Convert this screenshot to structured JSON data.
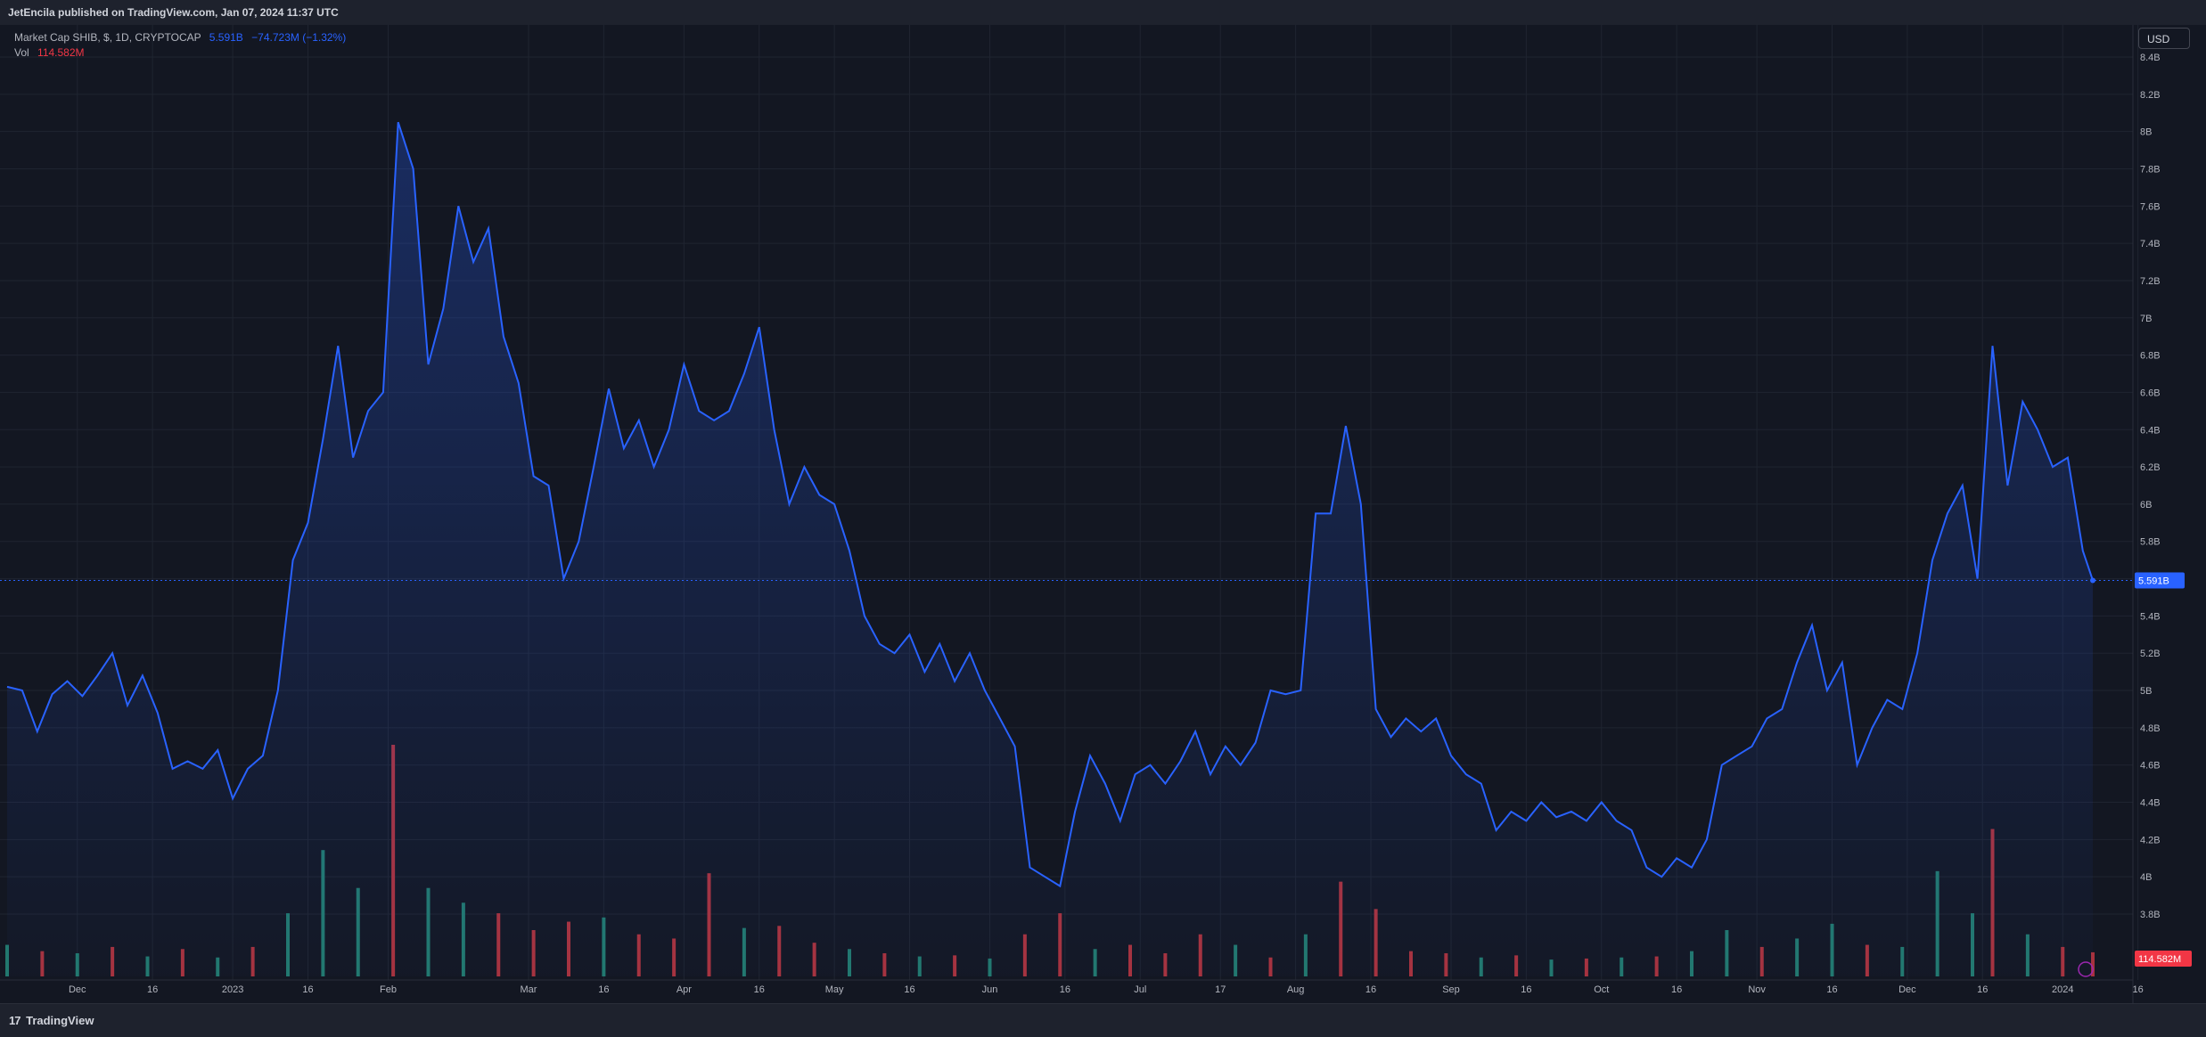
{
  "header": {
    "published": "JetEncila published on TradingView.com, Jan 07, 2024 11:37 UTC"
  },
  "legend": {
    "title": "Market Cap SHIB, $, 1D, CRYPTOCAP",
    "value": "5.591B",
    "change": "−74.723M (−1.32%)",
    "vol_label": "Vol",
    "vol_value": "114.582M"
  },
  "currency": "USD",
  "footer": {
    "brand": "TradingView",
    "logo_glyph": "17"
  },
  "colors": {
    "line": "#2962ff",
    "vol_up": "#22786d",
    "vol_down": "#a8323c",
    "last_price_badge": "#2962ff",
    "last_vol_badge": "#f23645"
  },
  "chart_data": {
    "type": "area",
    "title": "Market Cap SHIB, $, 1D, CRYPTOCAP",
    "y_unit": "B",
    "y_range": [
      3.6,
      8.4
    ],
    "y_ticks": [
      "8.4B",
      "8.2B",
      "8B",
      "7.8B",
      "7.6B",
      "7.4B",
      "7.2B",
      "7B",
      "6.8B",
      "6.6B",
      "6.4B",
      "6.2B",
      "6B",
      "5.8B",
      "5.6B",
      "5.4B",
      "5.2B",
      "5B",
      "4.8B",
      "4.6B",
      "4.4B",
      "4.2B",
      "4B",
      "3.8B"
    ],
    "x_range": [
      "2022-11-17",
      "2024-01-15"
    ],
    "x_ticks": [
      {
        "label": "Dec",
        "date": "2022-12-01"
      },
      {
        "label": "16",
        "date": "2022-12-16"
      },
      {
        "label": "2023",
        "date": "2023-01-01"
      },
      {
        "label": "16",
        "date": "2023-01-16"
      },
      {
        "label": "Feb",
        "date": "2023-02-01"
      },
      {
        "label": "Mar",
        "date": "2023-03-01"
      },
      {
        "label": "16",
        "date": "2023-03-16"
      },
      {
        "label": "Apr",
        "date": "2023-04-01"
      },
      {
        "label": "16",
        "date": "2023-04-16"
      },
      {
        "label": "May",
        "date": "2023-05-01"
      },
      {
        "label": "16",
        "date": "2023-05-16"
      },
      {
        "label": "Jun",
        "date": "2023-06-01"
      },
      {
        "label": "16",
        "date": "2023-06-16"
      },
      {
        "label": "Jul",
        "date": "2023-07-01"
      },
      {
        "label": "17",
        "date": "2023-07-17"
      },
      {
        "label": "Aug",
        "date": "2023-08-01"
      },
      {
        "label": "16",
        "date": "2023-08-16"
      },
      {
        "label": "Sep",
        "date": "2023-09-01"
      },
      {
        "label": "16",
        "date": "2023-09-16"
      },
      {
        "label": "Oct",
        "date": "2023-10-01"
      },
      {
        "label": "16",
        "date": "2023-10-16"
      },
      {
        "label": "Nov",
        "date": "2023-11-01"
      },
      {
        "label": "16",
        "date": "2023-11-16"
      },
      {
        "label": "Dec",
        "date": "2023-12-01"
      },
      {
        "label": "16",
        "date": "2023-12-16"
      },
      {
        "label": "2024",
        "date": "2024-01-01"
      },
      {
        "label": "16",
        "date": "2024-01-16"
      }
    ],
    "series": [
      {
        "type": "line",
        "points": [
          [
            "2022-11-17",
            5.02
          ],
          [
            "2022-11-20",
            5.0
          ],
          [
            "2022-11-23",
            4.78
          ],
          [
            "2022-11-26",
            4.98
          ],
          [
            "2022-11-29",
            5.05
          ],
          [
            "2022-12-02",
            4.97
          ],
          [
            "2022-12-05",
            5.08
          ],
          [
            "2022-12-08",
            5.2
          ],
          [
            "2022-12-11",
            4.92
          ],
          [
            "2022-12-14",
            5.08
          ],
          [
            "2022-12-17",
            4.88
          ],
          [
            "2022-12-20",
            4.58
          ],
          [
            "2022-12-23",
            4.62
          ],
          [
            "2022-12-26",
            4.58
          ],
          [
            "2022-12-29",
            4.68
          ],
          [
            "2023-01-01",
            4.42
          ],
          [
            "2023-01-04",
            4.58
          ],
          [
            "2023-01-07",
            4.65
          ],
          [
            "2023-01-10",
            5.0
          ],
          [
            "2023-01-13",
            5.7
          ],
          [
            "2023-01-16",
            5.9
          ],
          [
            "2023-01-19",
            6.35
          ],
          [
            "2023-01-22",
            6.85
          ],
          [
            "2023-01-25",
            6.25
          ],
          [
            "2023-01-28",
            6.5
          ],
          [
            "2023-01-31",
            6.6
          ],
          [
            "2023-02-03",
            8.05
          ],
          [
            "2023-02-06",
            7.8
          ],
          [
            "2023-02-09",
            6.75
          ],
          [
            "2023-02-12",
            7.05
          ],
          [
            "2023-02-15",
            7.6
          ],
          [
            "2023-02-18",
            7.3
          ],
          [
            "2023-02-21",
            7.48
          ],
          [
            "2023-02-24",
            6.9
          ],
          [
            "2023-02-27",
            6.65
          ],
          [
            "2023-03-02",
            6.15
          ],
          [
            "2023-03-05",
            6.1
          ],
          [
            "2023-03-08",
            5.6
          ],
          [
            "2023-03-11",
            5.8
          ],
          [
            "2023-03-14",
            6.2
          ],
          [
            "2023-03-17",
            6.62
          ],
          [
            "2023-03-20",
            6.3
          ],
          [
            "2023-03-23",
            6.45
          ],
          [
            "2023-03-26",
            6.2
          ],
          [
            "2023-03-29",
            6.4
          ],
          [
            "2023-04-01",
            6.75
          ],
          [
            "2023-04-04",
            6.5
          ],
          [
            "2023-04-07",
            6.45
          ],
          [
            "2023-04-10",
            6.5
          ],
          [
            "2023-04-13",
            6.7
          ],
          [
            "2023-04-16",
            6.95
          ],
          [
            "2023-04-19",
            6.4
          ],
          [
            "2023-04-22",
            6.0
          ],
          [
            "2023-04-25",
            6.2
          ],
          [
            "2023-04-28",
            6.05
          ],
          [
            "2023-05-01",
            6.0
          ],
          [
            "2023-05-04",
            5.75
          ],
          [
            "2023-05-07",
            5.4
          ],
          [
            "2023-05-10",
            5.25
          ],
          [
            "2023-05-13",
            5.2
          ],
          [
            "2023-05-16",
            5.3
          ],
          [
            "2023-05-19",
            5.1
          ],
          [
            "2023-05-22",
            5.25
          ],
          [
            "2023-05-25",
            5.05
          ],
          [
            "2023-05-28",
            5.2
          ],
          [
            "2023-05-31",
            5.0
          ],
          [
            "2023-06-03",
            4.85
          ],
          [
            "2023-06-06",
            4.7
          ],
          [
            "2023-06-09",
            4.05
          ],
          [
            "2023-06-12",
            4.0
          ],
          [
            "2023-06-15",
            3.95
          ],
          [
            "2023-06-18",
            4.35
          ],
          [
            "2023-06-21",
            4.65
          ],
          [
            "2023-06-24",
            4.5
          ],
          [
            "2023-06-27",
            4.3
          ],
          [
            "2023-06-30",
            4.55
          ],
          [
            "2023-07-03",
            4.6
          ],
          [
            "2023-07-06",
            4.5
          ],
          [
            "2023-07-09",
            4.62
          ],
          [
            "2023-07-12",
            4.78
          ],
          [
            "2023-07-15",
            4.55
          ],
          [
            "2023-07-18",
            4.7
          ],
          [
            "2023-07-21",
            4.6
          ],
          [
            "2023-07-24",
            4.72
          ],
          [
            "2023-07-27",
            5.0
          ],
          [
            "2023-07-30",
            4.98
          ],
          [
            "2023-08-02",
            5.0
          ],
          [
            "2023-08-05",
            5.95
          ],
          [
            "2023-08-08",
            5.95
          ],
          [
            "2023-08-11",
            6.42
          ],
          [
            "2023-08-14",
            6.0
          ],
          [
            "2023-08-17",
            4.9
          ],
          [
            "2023-08-20",
            4.75
          ],
          [
            "2023-08-23",
            4.85
          ],
          [
            "2023-08-26",
            4.78
          ],
          [
            "2023-08-29",
            4.85
          ],
          [
            "2023-09-01",
            4.65
          ],
          [
            "2023-09-04",
            4.55
          ],
          [
            "2023-09-07",
            4.5
          ],
          [
            "2023-09-10",
            4.25
          ],
          [
            "2023-09-13",
            4.35
          ],
          [
            "2023-09-16",
            4.3
          ],
          [
            "2023-09-19",
            4.4
          ],
          [
            "2023-09-22",
            4.32
          ],
          [
            "2023-09-25",
            4.35
          ],
          [
            "2023-09-28",
            4.3
          ],
          [
            "2023-10-01",
            4.4
          ],
          [
            "2023-10-04",
            4.3
          ],
          [
            "2023-10-07",
            4.25
          ],
          [
            "2023-10-10",
            4.05
          ],
          [
            "2023-10-13",
            4.0
          ],
          [
            "2023-10-16",
            4.1
          ],
          [
            "2023-10-19",
            4.05
          ],
          [
            "2023-10-22",
            4.2
          ],
          [
            "2023-10-25",
            4.6
          ],
          [
            "2023-10-28",
            4.65
          ],
          [
            "2023-10-31",
            4.7
          ],
          [
            "2023-11-03",
            4.85
          ],
          [
            "2023-11-06",
            4.9
          ],
          [
            "2023-11-09",
            5.15
          ],
          [
            "2023-11-12",
            5.35
          ],
          [
            "2023-11-15",
            5.0
          ],
          [
            "2023-11-18",
            5.15
          ],
          [
            "2023-11-21",
            4.6
          ],
          [
            "2023-11-24",
            4.8
          ],
          [
            "2023-11-27",
            4.95
          ],
          [
            "2023-11-30",
            4.9
          ],
          [
            "2023-12-03",
            5.2
          ],
          [
            "2023-12-06",
            5.7
          ],
          [
            "2023-12-09",
            5.95
          ],
          [
            "2023-12-12",
            6.1
          ],
          [
            "2023-12-15",
            5.6
          ],
          [
            "2023-12-18",
            6.85
          ],
          [
            "2023-12-21",
            6.1
          ],
          [
            "2023-12-24",
            6.55
          ],
          [
            "2023-12-27",
            6.4
          ],
          [
            "2023-12-30",
            6.2
          ],
          [
            "2024-01-02",
            6.25
          ],
          [
            "2024-01-05",
            5.75
          ],
          [
            "2024-01-07",
            5.591
          ]
        ]
      },
      {
        "type": "volume",
        "unit": "M",
        "points": [
          [
            "2022-11-17",
            150,
            "up"
          ],
          [
            "2022-11-24",
            120,
            "down"
          ],
          [
            "2022-12-01",
            110,
            "up"
          ],
          [
            "2022-12-08",
            140,
            "down"
          ],
          [
            "2022-12-15",
            95,
            "up"
          ],
          [
            "2022-12-22",
            130,
            "down"
          ],
          [
            "2022-12-29",
            90,
            "up"
          ],
          [
            "2023-01-05",
            140,
            "down"
          ],
          [
            "2023-01-12",
            300,
            "up"
          ],
          [
            "2023-01-19",
            600,
            "up"
          ],
          [
            "2023-01-26",
            420,
            "up"
          ],
          [
            "2023-02-02",
            1100,
            "down"
          ],
          [
            "2023-02-09",
            420,
            "up"
          ],
          [
            "2023-02-16",
            350,
            "up"
          ],
          [
            "2023-02-23",
            300,
            "down"
          ],
          [
            "2023-03-02",
            220,
            "down"
          ],
          [
            "2023-03-09",
            260,
            "down"
          ],
          [
            "2023-03-16",
            280,
            "up"
          ],
          [
            "2023-03-23",
            200,
            "down"
          ],
          [
            "2023-03-30",
            180,
            "down"
          ],
          [
            "2023-04-06",
            490,
            "down"
          ],
          [
            "2023-04-13",
            230,
            "up"
          ],
          [
            "2023-04-20",
            240,
            "down"
          ],
          [
            "2023-04-27",
            160,
            "down"
          ],
          [
            "2023-05-04",
            130,
            "up"
          ],
          [
            "2023-05-11",
            110,
            "down"
          ],
          [
            "2023-05-18",
            95,
            "up"
          ],
          [
            "2023-05-25",
            100,
            "down"
          ],
          [
            "2023-06-01",
            85,
            "up"
          ],
          [
            "2023-06-08",
            200,
            "down"
          ],
          [
            "2023-06-15",
            300,
            "down"
          ],
          [
            "2023-06-22",
            130,
            "up"
          ],
          [
            "2023-06-29",
            150,
            "down"
          ],
          [
            "2023-07-06",
            110,
            "down"
          ],
          [
            "2023-07-13",
            200,
            "down"
          ],
          [
            "2023-07-20",
            150,
            "up"
          ],
          [
            "2023-07-27",
            90,
            "down"
          ],
          [
            "2023-08-03",
            200,
            "up"
          ],
          [
            "2023-08-10",
            450,
            "down"
          ],
          [
            "2023-08-17",
            320,
            "down"
          ],
          [
            "2023-08-24",
            120,
            "down"
          ],
          [
            "2023-08-31",
            110,
            "down"
          ],
          [
            "2023-09-07",
            90,
            "up"
          ],
          [
            "2023-09-14",
            100,
            "down"
          ],
          [
            "2023-09-21",
            80,
            "up"
          ],
          [
            "2023-09-28",
            85,
            "down"
          ],
          [
            "2023-10-05",
            90,
            "up"
          ],
          [
            "2023-10-12",
            95,
            "down"
          ],
          [
            "2023-10-19",
            120,
            "up"
          ],
          [
            "2023-10-26",
            220,
            "up"
          ],
          [
            "2023-11-02",
            140,
            "down"
          ],
          [
            "2023-11-09",
            180,
            "up"
          ],
          [
            "2023-11-16",
            250,
            "up"
          ],
          [
            "2023-11-23",
            150,
            "down"
          ],
          [
            "2023-11-30",
            140,
            "up"
          ],
          [
            "2023-12-07",
            500,
            "up"
          ],
          [
            "2023-12-14",
            300,
            "up"
          ],
          [
            "2023-12-18",
            700,
            "down"
          ],
          [
            "2023-12-25",
            200,
            "up"
          ],
          [
            "2024-01-01",
            140,
            "down"
          ],
          [
            "2024-01-07",
            114.582,
            "down"
          ]
        ]
      }
    ],
    "last_price_label": "5.591B",
    "last_volume_label": "114.582M",
    "grid": true
  }
}
